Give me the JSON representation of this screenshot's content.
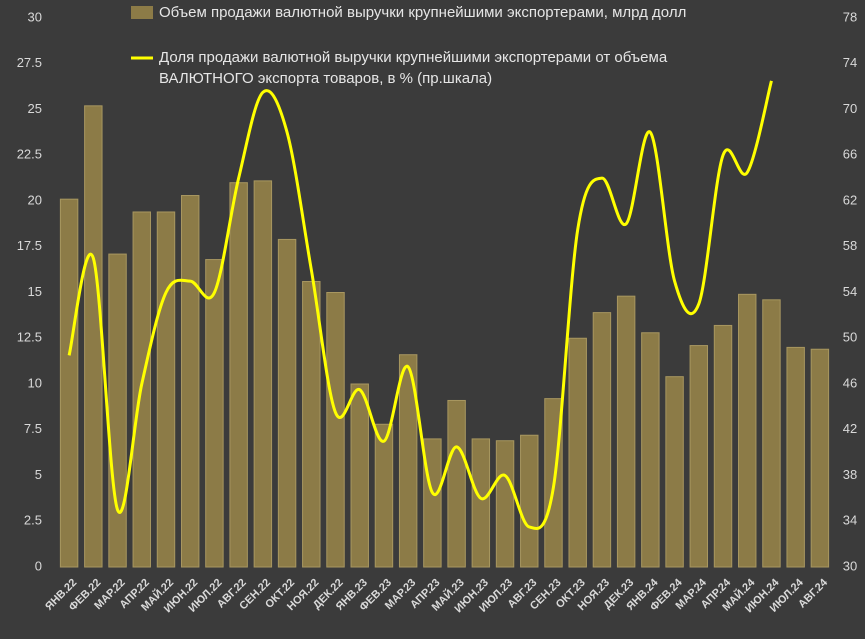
{
  "chart_data": {
    "type": "bar-line",
    "categories": [
      "ЯНВ.22",
      "ФЕВ.22",
      "МАР.22",
      "АПР.22",
      "МАЙ.22",
      "ИЮН.22",
      "ИЮЛ.22",
      "АВГ.22",
      "СЕН.22",
      "ОКТ.22",
      "НОЯ.22",
      "ДЕК.22",
      "ЯНВ.23",
      "ФЕВ.23",
      "МАР.23",
      "АПР.23",
      "МАЙ.23",
      "ИЮН.23",
      "ИЮЛ.23",
      "АВГ.23",
      "СЕН.23",
      "ОКТ.23",
      "НОЯ.23",
      "ДЕК.23",
      "ЯНВ.24",
      "ФЕВ.24",
      "МАР.24",
      "АПР.24",
      "МАЙ.24",
      "ИЮН.24",
      "ИЮЛ.24",
      "АВГ.24"
    ],
    "series": [
      {
        "name": "Объем продажи  валютной выручки крупнейшими экспортерами, млрд долл",
        "color": "#8c7b47",
        "type": "bar",
        "values": [
          20.1,
          25.2,
          17.1,
          19.4,
          19.4,
          20.3,
          16.8,
          21.0,
          21.1,
          17.9,
          15.6,
          15.0,
          10.0,
          7.8,
          11.6,
          7.0,
          9.1,
          7.0,
          6.9,
          7.2,
          9.2,
          12.5,
          13.9,
          14.8,
          12.8,
          10.4,
          12.1,
          13.2,
          14.9,
          14.6,
          12.0,
          11.9
        ]
      },
      {
        "name": "Доля продажи валютной выручки крупнейшими экспортерами от объема ВАЛЮТНОГО экспорта товаров, в % (пр.шкала)",
        "color": "#ffff00",
        "type": "line",
        "axis": "y2",
        "values": [
          48.5,
          57,
          35,
          46,
          54,
          55,
          54,
          64,
          71.5,
          68,
          56,
          43.5,
          45.5,
          41,
          47.5,
          36.5,
          40.5,
          36,
          38,
          33.5,
          37,
          59.5,
          64,
          60,
          68,
          55,
          53,
          66,
          64.5,
          72.5,
          null,
          null
        ]
      }
    ],
    "ylim": [
      0,
      30
    ],
    "yticks": [
      0,
      2.5,
      5,
      7.5,
      10,
      12.5,
      15,
      17.5,
      20,
      22.5,
      25,
      27.5,
      30
    ],
    "y2lim": [
      30,
      78
    ],
    "y2ticks": [
      30,
      34,
      38,
      42,
      46,
      50,
      54,
      58,
      62,
      66,
      70,
      74,
      78
    ]
  }
}
